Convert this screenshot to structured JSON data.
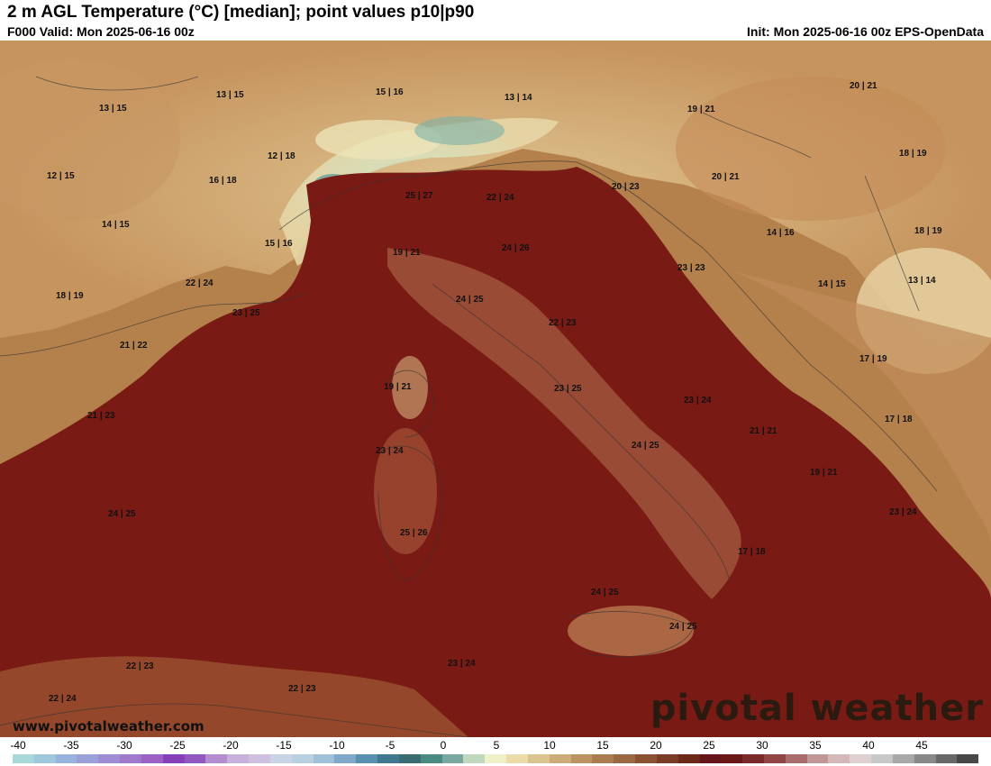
{
  "header": {
    "title": "2 m AGL Temperature (°C) [median]; point values p10|p90",
    "valid": "F000 Valid: Mon 2025-06-16 00z",
    "init": "Init: Mon 2025-06-16 00z EPS-OpenData"
  },
  "map": {
    "points": [
      {
        "label": "13 | 15"
      },
      {
        "label": "13 | 15"
      },
      {
        "label": "15 | 16"
      },
      {
        "label": "13 | 14"
      },
      {
        "label": "19 | 21"
      },
      {
        "label": "20 | 21"
      },
      {
        "label": "12 | 18"
      },
      {
        "label": "12 | 15"
      },
      {
        "label": "16 | 18"
      },
      {
        "label": "25 | 27"
      },
      {
        "label": "22 | 24"
      },
      {
        "label": "20 | 23"
      },
      {
        "label": "20 | 21"
      },
      {
        "label": "18 | 19"
      },
      {
        "label": "14 | 15"
      },
      {
        "label": "15 | 16"
      },
      {
        "label": "19 | 21"
      },
      {
        "label": "24 | 26"
      },
      {
        "label": "14 | 16"
      },
      {
        "label": "18 | 19"
      },
      {
        "label": "23 | 23"
      },
      {
        "label": "18 | 19"
      },
      {
        "label": "22 | 24"
      },
      {
        "label": "23 | 25"
      },
      {
        "label": "24 | 25"
      },
      {
        "label": "14 | 15"
      },
      {
        "label": "13 | 14"
      },
      {
        "label": "22 | 23"
      },
      {
        "label": "21 | 22"
      },
      {
        "label": "17 | 19"
      },
      {
        "label": "19 | 21"
      },
      {
        "label": "23 | 25"
      },
      {
        "label": "23 | 24"
      },
      {
        "label": "21 | 23"
      },
      {
        "label": "17 | 18"
      },
      {
        "label": "21 | 21"
      },
      {
        "label": "23 | 24"
      },
      {
        "label": "24 | 25"
      },
      {
        "label": "19 | 21"
      },
      {
        "label": "24 | 25"
      },
      {
        "label": "23 | 24"
      },
      {
        "label": "25 | 26"
      },
      {
        "label": "17 | 18"
      },
      {
        "label": "24 | 25"
      },
      {
        "label": "24 | 25"
      },
      {
        "label": "22 | 23"
      },
      {
        "label": "23 | 24"
      },
      {
        "label": "22 | 24"
      },
      {
        "label": "22 | 23"
      }
    ],
    "website": "www.pivotalweather.com",
    "brand": "pivotal weather"
  },
  "colorbar": {
    "ticks": [
      "-40",
      "-35",
      "-30",
      "-25",
      "-20",
      "-15",
      "-10",
      "-5",
      "0",
      "5",
      "10",
      "15",
      "20",
      "25",
      "30",
      "35",
      "40",
      "45"
    ],
    "colors": [
      "#a8d8d8",
      "#a0c8dc",
      "#98b4dc",
      "#9ca0d8",
      "#a08cd4",
      "#a078cc",
      "#9a60c4",
      "#8840b8",
      "#9058c0",
      "#b48cd0",
      "#c8b0dc",
      "#d0c0e0",
      "#c8d4e4",
      "#b8d0e0",
      "#a0c0d8",
      "#80a8c8",
      "#5890b0",
      "#407890",
      "#386c70",
      "#4a8a80",
      "#78a8a0",
      "#c0d8c0",
      "#f0f0c8",
      "#ecdcaa",
      "#dcc490",
      "#ccac78",
      "#bc9462",
      "#aa7c50",
      "#9a6842",
      "#8a5232",
      "#7a3c26",
      "#6c2818",
      "#64141a",
      "#6a1818",
      "#7a2a2a",
      "#904444",
      "#a86a6a",
      "#c09696",
      "#d4b8b8",
      "#e0d0d0",
      "#c8c8c8",
      "#a8a8a8",
      "#888888",
      "#686868",
      "#484848"
    ]
  }
}
